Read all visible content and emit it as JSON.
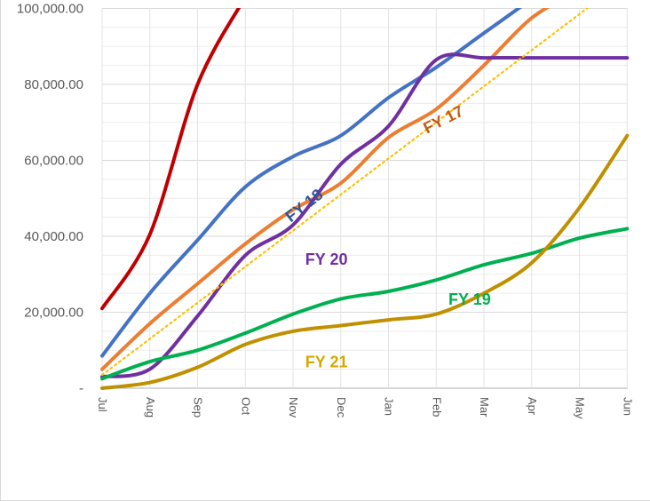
{
  "chart_data": {
    "type": "line",
    "categories": [
      "Jul",
      "Aug",
      "Sep",
      "Oct",
      "Nov",
      "Dec",
      "Jan",
      "Feb",
      "Mar",
      "Apr",
      "May",
      "Jun"
    ],
    "ylim": [
      0,
      100000
    ],
    "yticks": [
      {
        "value": 0,
        "label": "-"
      },
      {
        "value": 20000,
        "label": "20,000.00"
      },
      {
        "value": 40000,
        "label": "40,000.00"
      },
      {
        "value": 60000,
        "label": "60,000.00"
      },
      {
        "value": 80000,
        "label": "80,000.00"
      },
      {
        "value": 100000,
        "label": "100,000.00"
      }
    ],
    "grid": true,
    "series": [
      {
        "name": "",
        "color": "#c00000",
        "dash": false,
        "values": [
          21000,
          40500,
          80000,
          103000,
          null,
          null,
          null,
          null,
          null,
          null,
          null,
          null
        ]
      },
      {
        "name": "FY 18",
        "color": "#4472c4",
        "dash": false,
        "values": [
          8500,
          25000,
          39000,
          53000,
          61000,
          66500,
          76500,
          84500,
          93500,
          102500,
          null,
          null
        ]
      },
      {
        "name": "FY 17",
        "color": "#ed7d31",
        "dash": false,
        "values": [
          5000,
          17000,
          27500,
          38000,
          47000,
          54000,
          66000,
          73500,
          85000,
          97500,
          105000,
          null
        ]
      },
      {
        "name": "FY 20",
        "color": "#7030a0",
        "dash": false,
        "values": [
          3000,
          5000,
          19000,
          35000,
          43000,
          59000,
          69000,
          86500,
          87000,
          87000,
          87000,
          87000
        ]
      },
      {
        "name": "FY 19",
        "color": "#00b050",
        "dash": false,
        "values": [
          2500,
          7000,
          10000,
          14500,
          19500,
          23500,
          25500,
          28500,
          32500,
          35500,
          39500,
          42000
        ]
      },
      {
        "name": "FY 21",
        "color": "#bf9000",
        "dash": false,
        "values": [
          0,
          1500,
          5500,
          11500,
          15000,
          16500,
          18000,
          19500,
          25000,
          33000,
          47500,
          66500
        ]
      },
      {
        "name": "",
        "color": "#ffc000",
        "dash": true,
        "values": [
          3500,
          13000,
          22500,
          32000,
          41500,
          51000,
          60500,
          70000,
          79500,
          89000,
          98500,
          108000
        ]
      }
    ],
    "labels": [
      {
        "text": "FY 18",
        "color": "#2f5597",
        "x": 4.3,
        "y": 47000,
        "rotate": -38
      },
      {
        "text": "FY 17",
        "color": "#c55a11",
        "x": 7.2,
        "y": 69500,
        "rotate": -27
      },
      {
        "text": "FY 20",
        "color": "#7030a0",
        "x": 4.7,
        "y": 32500,
        "rotate": 0
      },
      {
        "text": "FY 19",
        "color": "#00b050",
        "x": 7.7,
        "y": 22000,
        "rotate": 0
      },
      {
        "text": "FY 21",
        "color": "#d4a800",
        "x": 4.7,
        "y": 5500,
        "rotate": 0
      }
    ]
  }
}
